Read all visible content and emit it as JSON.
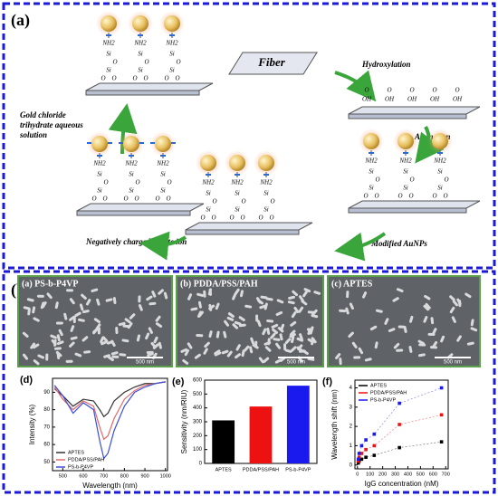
{
  "panel_a": {
    "label": "(a)",
    "fiber": "Fiber",
    "hydroxylation": "Hydroxylation",
    "amination": "Amination",
    "modified": "Modified AuNPs",
    "citrate": "Negatively charged citrate ion",
    "gold_lines": [
      "Gold chloride",
      "trihydrate aqueous",
      "solution"
    ],
    "chem": {
      "nh2": "NH2",
      "si": "Si",
      "o": "O",
      "oh": "OH"
    }
  },
  "panel_b": {
    "label": "(b)",
    "sem": [
      {
        "label": "(a) PS-b-P4VP",
        "scale": "500 nm"
      },
      {
        "label": "(b) PDDA/PSS/PAH",
        "scale": "500 nm"
      },
      {
        "label": "(c) APTES",
        "scale": "500 nm"
      }
    ]
  },
  "chart_data": [
    {
      "type": "line",
      "title": "(d)",
      "x_label": "Wavelength (nm)",
      "y_label": "Intensity (%)",
      "x": [
        460,
        500,
        550,
        600,
        650,
        680,
        700,
        720,
        750,
        800,
        850,
        900,
        950,
        1000
      ],
      "series": [
        {
          "name": "APTES",
          "color": "#333333",
          "values": [
            92,
            88,
            82,
            86,
            85,
            80,
            76,
            78,
            85,
            90,
            93,
            95,
            95,
            96
          ]
        },
        {
          "name": "PDDA/PSS/PAH",
          "color": "#e06a6a",
          "values": [
            93,
            86,
            80,
            85,
            82,
            70,
            63,
            65,
            75,
            86,
            91,
            94,
            95,
            96
          ]
        },
        {
          "name": "PS-b-P4VP",
          "color": "#3a4fd8",
          "values": [
            94,
            88,
            78,
            84,
            80,
            62,
            52,
            55,
            68,
            82,
            90,
            93,
            95,
            96
          ]
        }
      ],
      "xlim": [
        450,
        1010
      ],
      "xticks": [
        500,
        600,
        700,
        800,
        900,
        1000
      ],
      "ylim": [
        45,
        98
      ],
      "yticks": [
        50,
        60,
        70,
        80,
        90
      ]
    },
    {
      "type": "bar",
      "title": "(e)",
      "y_label": "Sensitivity (nm/RIU)",
      "categories": [
        "APTES",
        "PDDA/PSS/PAH",
        "PS-b-P4VP"
      ],
      "values": [
        310,
        410,
        560
      ],
      "colors": [
        "#000000",
        "#ee1111",
        "#1a1aee"
      ],
      "ylim": [
        0,
        600
      ],
      "yticks": [
        0,
        100,
        200,
        300,
        400,
        500,
        600
      ]
    },
    {
      "type": "scatter",
      "title": "(f)",
      "x_label": "IgG concentration (nM)",
      "y_label": "Wavelength shift (nm)",
      "x": [
        6.7,
        13.3,
        33,
        67,
        133,
        333,
        667
      ],
      "series": [
        {
          "name": "APTES",
          "color": "#000000",
          "values": [
            0.1,
            0.2,
            0.3,
            0.4,
            0.5,
            0.9,
            1.2
          ]
        },
        {
          "name": "PDDA/PSS/PAH",
          "color": "#ee1111",
          "values": [
            0.2,
            0.4,
            0.6,
            0.8,
            1.0,
            2.1,
            2.6
          ]
        },
        {
          "name": "PS-b-P4VP",
          "color": "#1a1aee",
          "values": [
            0.3,
            0.6,
            1.0,
            1.3,
            1.6,
            3.2,
            4.0
          ]
        }
      ],
      "xlim": [
        -20,
        720
      ],
      "xticks": [
        0,
        100,
        200,
        300,
        400,
        500,
        600,
        700
      ],
      "ylim": [
        -0.2,
        4.4
      ],
      "yticks": [
        0,
        1,
        2,
        3,
        4
      ]
    }
  ]
}
